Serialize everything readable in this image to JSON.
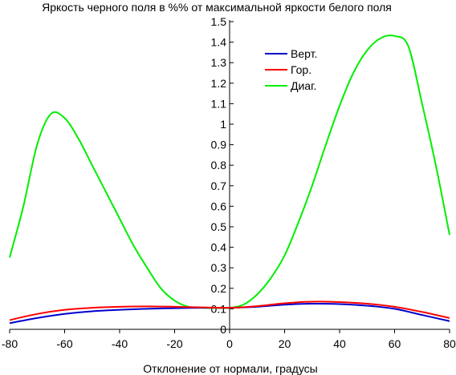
{
  "chart_data": {
    "type": "line",
    "title": "Яркость черного поля в %% от максимальной яркости белого поля",
    "xlabel": "Отклонение от нормали, градусы",
    "ylabel": "",
    "xlim": [
      -80,
      80
    ],
    "ylim": [
      0,
      1.5
    ],
    "x_ticks": [
      -80,
      -60,
      -40,
      -20,
      0,
      20,
      40,
      60,
      80
    ],
    "y_ticks": [
      0,
      0.1,
      0.2,
      0.3,
      0.4,
      0.5,
      0.6,
      0.7,
      0.8,
      0.9,
      1,
      1.1,
      1.2,
      1.3,
      1.4,
      1.5
    ],
    "grid": false,
    "legend_position": "top-right",
    "series": [
      {
        "name": "Верт.",
        "color": "#0000cc",
        "x": [
          -80,
          -70,
          -60,
          -50,
          -40,
          -30,
          -20,
          -10,
          0,
          10,
          20,
          30,
          40,
          50,
          60,
          70,
          80
        ],
        "y": [
          0.03,
          0.055,
          0.075,
          0.088,
          0.095,
          0.1,
          0.103,
          0.105,
          0.105,
          0.11,
          0.12,
          0.125,
          0.123,
          0.115,
          0.1,
          0.07,
          0.04
        ]
      },
      {
        "name": "Гор.",
        "color": "#ff0000",
        "x": [
          -80,
          -70,
          -60,
          -50,
          -40,
          -30,
          -20,
          -10,
          0,
          10,
          20,
          30,
          40,
          50,
          60,
          70,
          80
        ],
        "y": [
          0.045,
          0.075,
          0.095,
          0.105,
          0.11,
          0.112,
          0.11,
          0.107,
          0.105,
          0.113,
          0.127,
          0.135,
          0.133,
          0.125,
          0.11,
          0.085,
          0.055
        ]
      },
      {
        "name": "Диаг.",
        "color": "#00ee00",
        "x": [
          -80,
          -75,
          -70,
          -65,
          -60,
          -55,
          -50,
          -45,
          -40,
          -35,
          -30,
          -25,
          -20,
          -15,
          -10,
          -5,
          0,
          5,
          10,
          15,
          20,
          25,
          30,
          35,
          40,
          45,
          50,
          55,
          60,
          65,
          70,
          75,
          80
        ],
        "y": [
          0.35,
          0.6,
          0.9,
          1.05,
          1.03,
          0.93,
          0.8,
          0.67,
          0.54,
          0.41,
          0.3,
          0.2,
          0.14,
          0.11,
          0.105,
          0.104,
          0.105,
          0.12,
          0.17,
          0.25,
          0.36,
          0.52,
          0.7,
          0.9,
          1.09,
          1.25,
          1.36,
          1.42,
          1.43,
          1.38,
          1.1,
          0.8,
          0.46
        ]
      }
    ]
  }
}
